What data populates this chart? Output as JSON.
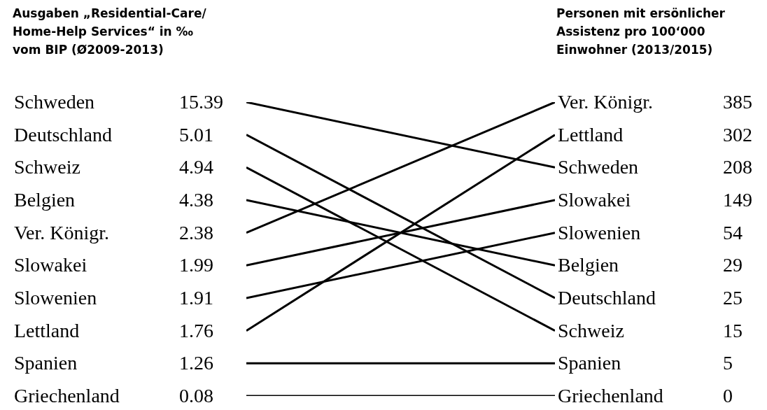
{
  "chart_data": [
    {
      "type": "other",
      "data_labels": true,
      "title": "Ausgaben „Residential-Care/ Home-Help Services“ in ‰ vom BIP (Ø2009-2013)",
      "color": "#000000",
      "categories": [
        "Schweden",
        "Deutschland",
        "Schweiz",
        "Belgien",
        "Ver. Königr.",
        "Slowakei",
        "Slowenien",
        "Lettland",
        "Spanien",
        "Griechenland"
      ],
      "values": [
        15.39,
        5.01,
        4.94,
        4.38,
        2.38,
        1.99,
        1.91,
        1.76,
        1.26,
        0.08
      ]
    },
    {
      "type": "other",
      "data_labels": true,
      "title": "Personen mit ersönlicher Assistenz pro 100‘000 Einwohner (2013/2015)",
      "color": "#000000",
      "categories": [
        "Ver. Königr.",
        "Lettland",
        "Schweden",
        "Slowakei",
        "Slowenien",
        "Belgien",
        "Deutschland",
        "Schweiz",
        "Spanien",
        "Griechenland"
      ],
      "values": [
        385,
        302,
        208,
        149,
        54,
        29,
        25,
        15,
        5,
        0
      ]
    }
  ]
}
